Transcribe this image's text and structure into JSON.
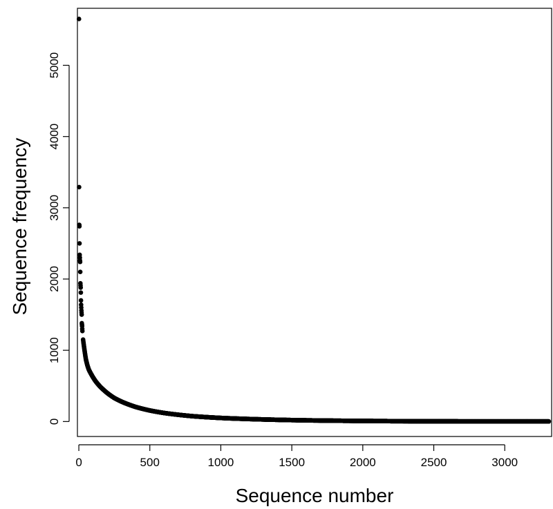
{
  "chart_data": {
    "type": "scatter",
    "title": "",
    "xlabel": "Sequence number",
    "ylabel": "Sequence frequency",
    "xlim": [
      -10,
      3330
    ],
    "ylim": [
      -210,
      5800
    ],
    "x_ticks": [
      0,
      500,
      1000,
      1500,
      2000,
      2500,
      3000
    ],
    "x_tick_labels": [
      "0",
      "500",
      "1000",
      "1500",
      "2000",
      "2500",
      "3000"
    ],
    "y_ticks": [
      0,
      1000,
      2000,
      3000,
      4000,
      5000
    ],
    "y_tick_labels": [
      "0",
      "1000",
      "2000",
      "3000",
      "4000",
      "5000"
    ],
    "grid": false,
    "legend": "none",
    "marker_color": "#000000",
    "series": [
      {
        "top_points": [
          [
            1,
            5650
          ],
          [
            2,
            3290
          ],
          [
            3,
            2760
          ],
          [
            4,
            2740
          ],
          [
            5,
            2500
          ],
          [
            6,
            2340
          ],
          [
            7,
            2300
          ],
          [
            8,
            2260
          ],
          [
            9,
            2240
          ],
          [
            10,
            2100
          ],
          [
            11,
            1940
          ],
          [
            12,
            1910
          ],
          [
            13,
            1880
          ],
          [
            14,
            1810
          ],
          [
            15,
            1700
          ],
          [
            16,
            1640
          ],
          [
            17,
            1600
          ],
          [
            18,
            1560
          ],
          [
            19,
            1530
          ],
          [
            20,
            1500
          ],
          [
            21,
            1380
          ],
          [
            22,
            1360
          ],
          [
            23,
            1340
          ],
          [
            24,
            1300
          ],
          [
            25,
            1270
          ]
        ],
        "curve_points": [
          [
            30,
            1150
          ],
          [
            40,
            1000
          ],
          [
            50,
            870
          ],
          [
            60,
            790
          ],
          [
            70,
            730
          ],
          [
            80,
            690
          ],
          [
            100,
            620
          ],
          [
            120,
            560
          ],
          [
            150,
            490
          ],
          [
            200,
            400
          ],
          [
            250,
            330
          ],
          [
            300,
            280
          ],
          [
            400,
            205
          ],
          [
            500,
            155
          ],
          [
            600,
            120
          ],
          [
            700,
            95
          ],
          [
            800,
            75
          ],
          [
            1000,
            50
          ],
          [
            1200,
            35
          ],
          [
            1500,
            20
          ],
          [
            2000,
            8
          ],
          [
            2500,
            3
          ],
          [
            3000,
            1
          ],
          [
            3310,
            1
          ]
        ]
      }
    ]
  }
}
